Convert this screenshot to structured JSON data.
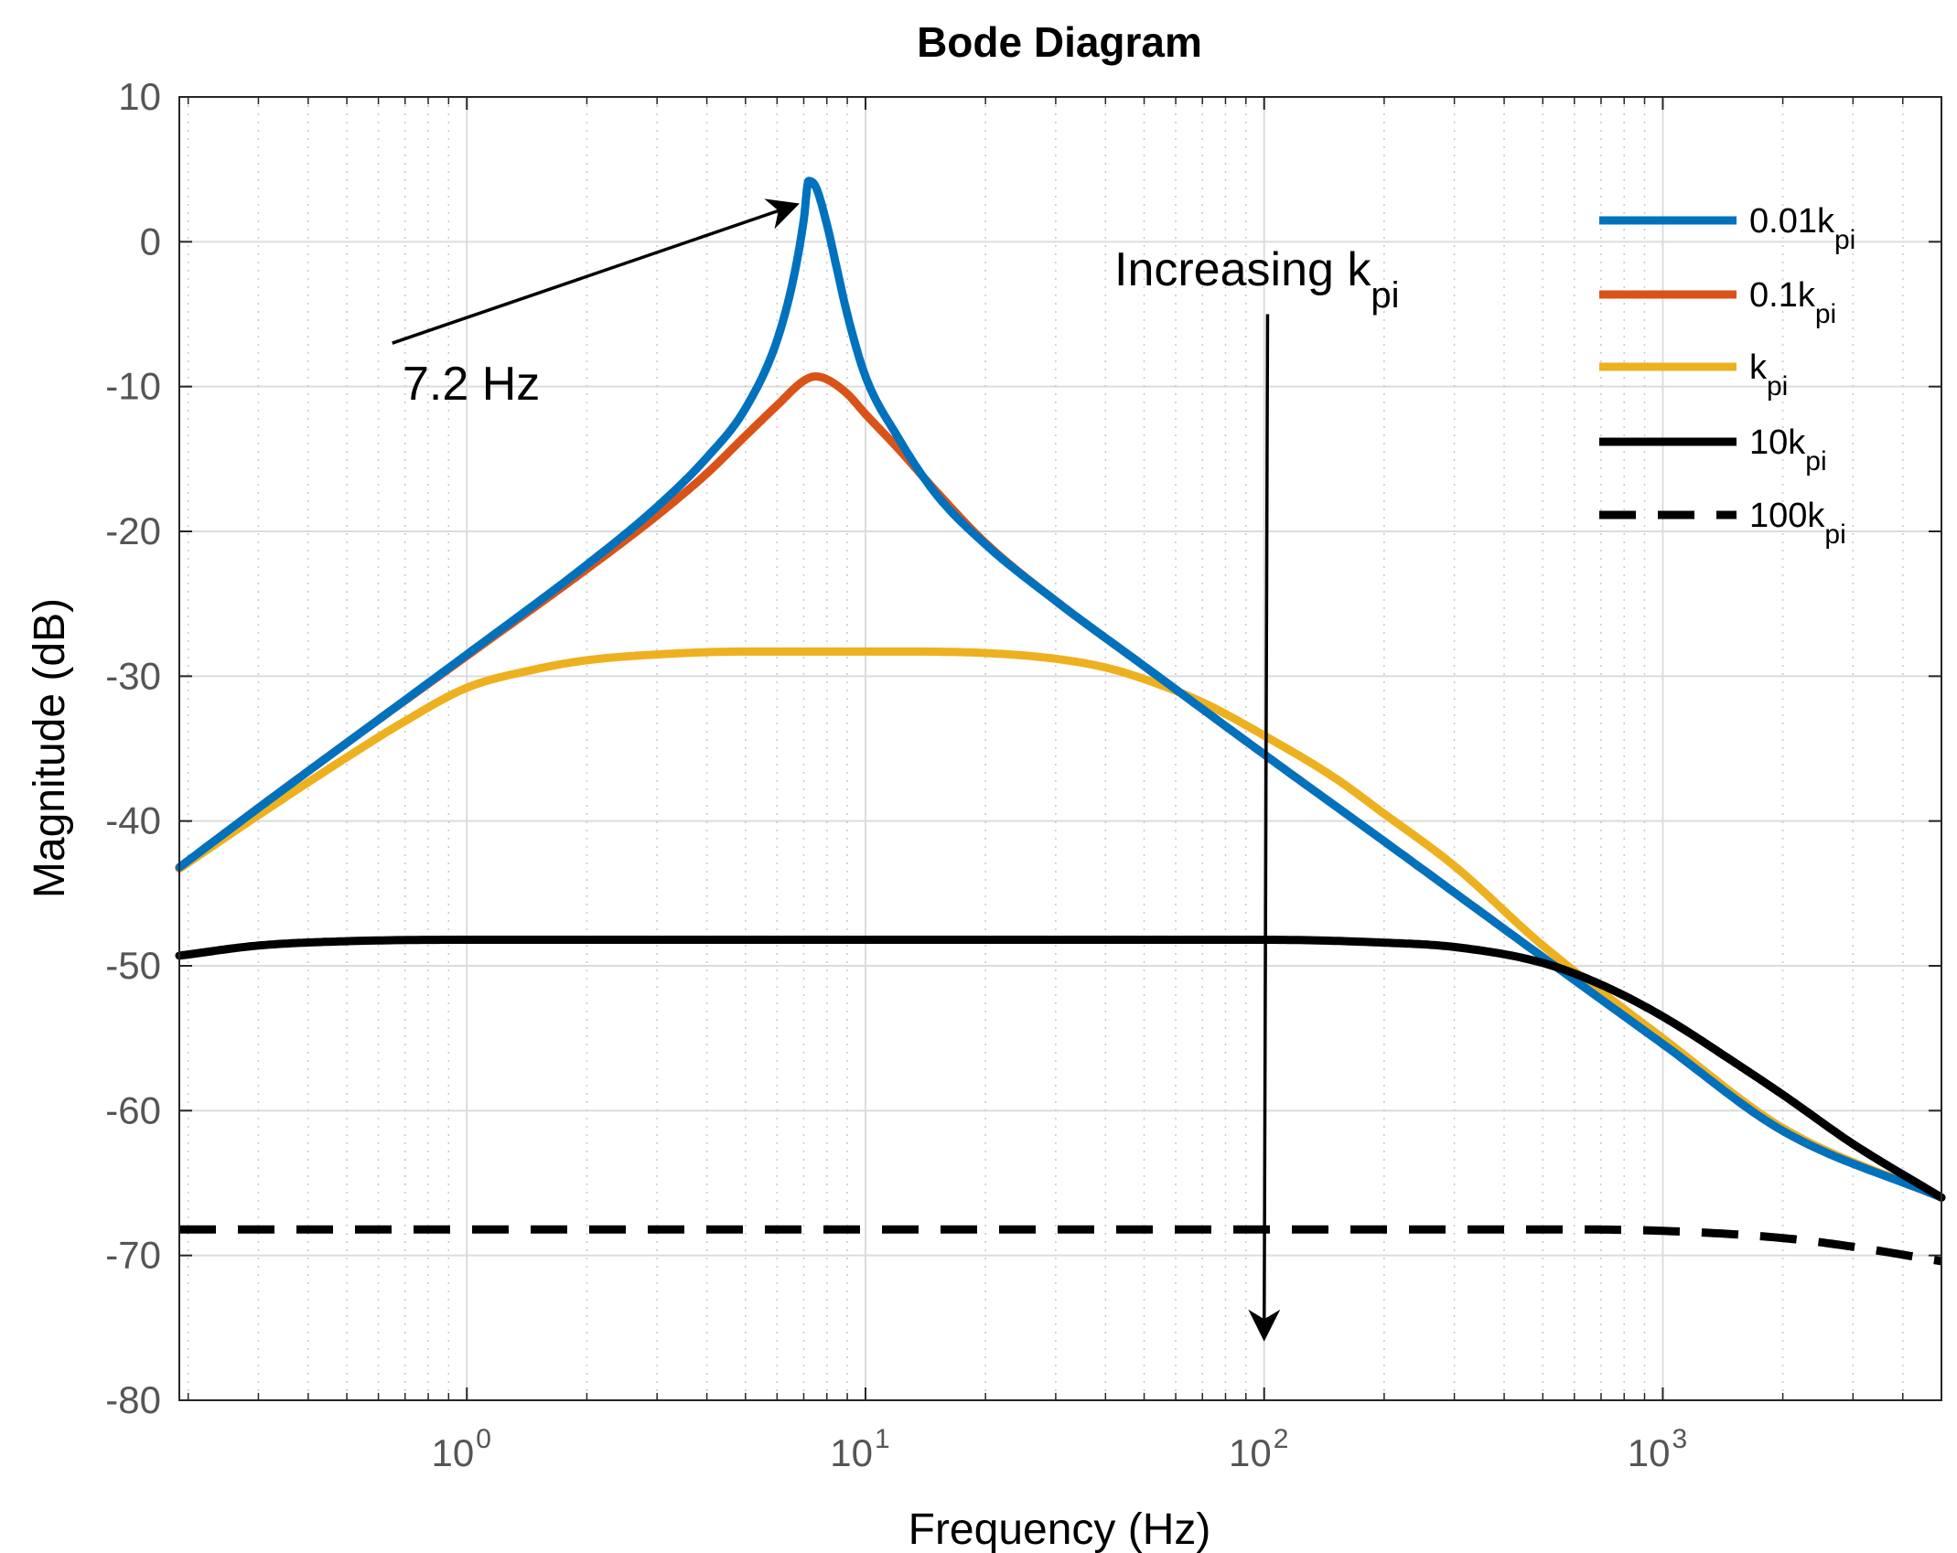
{
  "chart_data": {
    "type": "line",
    "title": "Bode Diagram",
    "xlabel": "Frequency  (Hz)",
    "ylabel": "Magnitude (dB)",
    "xscale": "log",
    "xlim": [
      0.19,
      5000
    ],
    "ylim": [
      -80,
      10
    ],
    "grid": true,
    "yticks": [
      10,
      0,
      -10,
      -20,
      -30,
      -40,
      -50,
      -60,
      -70,
      -80
    ],
    "xticks": [
      {
        "value": 1,
        "base": "10",
        "exp": "0"
      },
      {
        "value": 10,
        "base": "10",
        "exp": "1"
      },
      {
        "value": 100,
        "base": "10",
        "exp": "2"
      },
      {
        "value": 1000,
        "base": "10",
        "exp": "3"
      }
    ],
    "legend_position": "top-right",
    "series": [
      {
        "name": "0.01k_pi",
        "legend_main": "0.01k",
        "legend_sub": "pi",
        "color": "#0072BD",
        "style": "solid",
        "x": [
          0.19,
          0.3,
          0.5,
          1,
          2,
          3,
          4,
          5,
          6,
          6.6,
          7,
          7.2,
          7.5,
          8,
          8.5,
          9,
          10,
          12,
          15,
          20,
          30,
          50,
          100,
          200,
          500,
          1000,
          2000,
          5000
        ],
        "y": [
          -43.2,
          -39.1,
          -34.6,
          -28.5,
          -22.3,
          -18.3,
          -14.9,
          -11.5,
          -6.8,
          -2.5,
          1.5,
          4.2,
          3.8,
          1.2,
          -2.0,
          -5.0,
          -9.3,
          -13.4,
          -17.4,
          -20.9,
          -24.8,
          -29.3,
          -35.4,
          -41.4,
          -49.4,
          -55.4,
          -61.4,
          -66.0
        ]
      },
      {
        "name": "0.1k_pi",
        "legend_main": "0.1k",
        "legend_sub": "pi",
        "color": "#D95319",
        "style": "solid",
        "x": [
          0.19,
          0.3,
          0.5,
          1,
          2,
          3,
          4,
          5,
          6,
          7,
          7.5,
          8,
          9,
          10,
          12,
          15,
          20,
          30,
          50,
          100,
          200,
          500,
          1000,
          2000,
          5000
        ],
        "y": [
          -43.2,
          -39.1,
          -34.6,
          -28.6,
          -22.6,
          -18.9,
          -16.0,
          -13.4,
          -11.3,
          -9.6,
          -9.3,
          -9.5,
          -10.5,
          -11.9,
          -14.2,
          -17.2,
          -20.8,
          -24.8,
          -29.3,
          -35.4,
          -41.4,
          -49.4,
          -55.4,
          -61.4,
          -66.0
        ]
      },
      {
        "name": "k_pi",
        "legend_main": "k",
        "legend_sub": "pi",
        "color": "#EDB120",
        "style": "solid",
        "x": [
          0.19,
          0.3,
          0.5,
          0.7,
          1,
          1.5,
          2,
          3,
          5,
          7.2,
          10,
          20,
          30,
          40,
          50,
          70,
          100,
          150,
          200,
          300,
          500,
          1000,
          2000,
          5000
        ],
        "y": [
          -43.3,
          -39.6,
          -35.6,
          -33.1,
          -30.8,
          -29.5,
          -28.9,
          -28.5,
          -28.3,
          -28.3,
          -28.3,
          -28.4,
          -28.8,
          -29.4,
          -30.2,
          -31.8,
          -34.1,
          -37.0,
          -39.5,
          -43.1,
          -48.6,
          -55.0,
          -61.2,
          -66.0
        ]
      },
      {
        "name": "10k_pi",
        "legend_main": "10k",
        "legend_sub": "pi",
        "color": "#000000",
        "style": "solid",
        "x": [
          0.19,
          0.3,
          0.5,
          1,
          2,
          5,
          10,
          20,
          50,
          100,
          200,
          300,
          500,
          700,
          1000,
          1500,
          2000,
          3000,
          5000
        ],
        "y": [
          -49.3,
          -48.6,
          -48.3,
          -48.2,
          -48.2,
          -48.2,
          -48.2,
          -48.2,
          -48.2,
          -48.2,
          -48.4,
          -48.7,
          -49.8,
          -51.3,
          -53.5,
          -56.6,
          -58.9,
          -62.3,
          -66.0
        ]
      },
      {
        "name": "100k_pi",
        "legend_main": "100k",
        "legend_sub": "pi",
        "color": "#000000",
        "style": "dashed",
        "x": [
          0.19,
          1,
          10,
          100,
          500,
          1000,
          2000,
          3000,
          5000
        ],
        "y": [
          -68.2,
          -68.2,
          -68.2,
          -68.2,
          -68.2,
          -68.3,
          -68.8,
          -69.4,
          -70.4
        ]
      }
    ],
    "annotations": [
      {
        "id": "peak",
        "text": "7.2 Hz",
        "arrow_from": {
          "x": 0.65,
          "y": -7
        },
        "arrow_to": {
          "x": 6.6,
          "y": 2.5
        }
      },
      {
        "id": "kpi",
        "text_main": "Increasing k",
        "text_sub": "pi",
        "arrow_from": {
          "x": 102,
          "y": -5
        },
        "arrow_to": {
          "x": 100,
          "y": -75.5
        }
      }
    ]
  }
}
